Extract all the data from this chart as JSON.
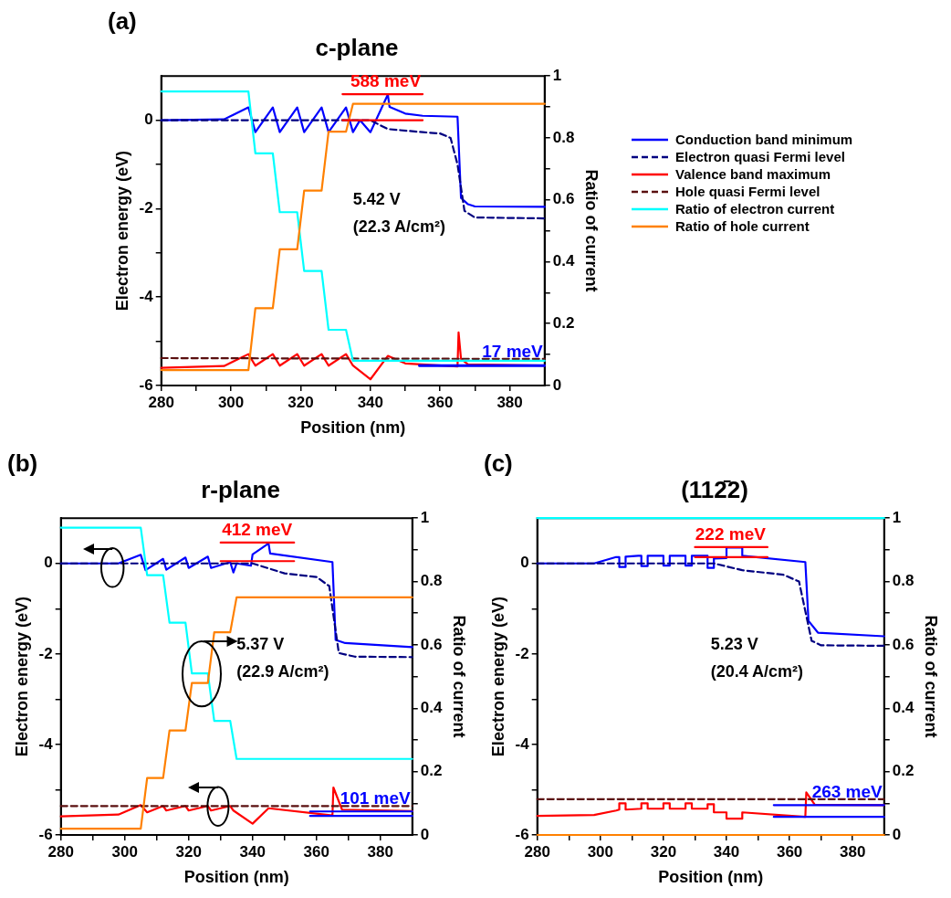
{
  "chart_data": [
    {
      "type": "line",
      "title": "c-plane",
      "xlabel": "Position (nm)",
      "ylabel": "Electron energy (eV)",
      "y2label": "Ratio of current",
      "annotations": [
        "(a)",
        "5.42 V",
        "(22.3 A/cm²)"
      ],
      "xlim": [
        280,
        390
      ],
      "xticks": [
        280,
        {
          "value": 290,
          "label": null
        },
        300,
        {
          "value": 310,
          "label": null
        },
        320,
        {
          "value": 330,
          "label": null
        },
        340,
        {
          "value": 350,
          "label": null
        },
        360,
        {
          "value": 370,
          "label": null
        },
        380
      ],
      "ylim": [
        -6,
        1
      ],
      "yticks": [
        -6,
        {
          "value": -5,
          "label": null
        },
        -4,
        {
          "value": -3,
          "label": null
        },
        -2,
        {
          "value": -1,
          "label": null
        },
        0
      ],
      "y2lim": [
        0,
        1
      ],
      "y2ticks": [
        0,
        {
          "value": 0.1,
          "label": null
        },
        0.2,
        {
          "value": 0.3,
          "label": null
        },
        0.4,
        {
          "value": 0.5,
          "label": null
        },
        0.6,
        {
          "value": 0.7,
          "label": null
        },
        0.8,
        {
          "value": 0.9,
          "label": null
        },
        1
      ],
      "grid": false,
      "legend": "right",
      "marker": "none",
      "series": [
        {
          "name": "Conduction band minimum",
          "color": "#0000ff",
          "x": [
            280,
            298,
            305,
            307,
            312,
            314,
            319,
            321,
            326,
            328,
            333,
            335,
            337,
            340,
            345,
            345.5,
            350,
            355,
            365,
            366,
            368,
            370,
            390
          ],
          "values": [
            0,
            0.02,
            0.29,
            -0.27,
            0.29,
            -0.27,
            0.29,
            -0.27,
            0.29,
            -0.27,
            0.29,
            -0.27,
            0,
            -0.27,
            0.58,
            0.3,
            0.15,
            0.1,
            0.08,
            -1.76,
            -1.9,
            -1.95,
            -1.96
          ]
        },
        {
          "name": "Electron quasi Fermi level",
          "color": "#000080",
          "line_style": "dashed",
          "x": [
            280,
            340,
            345,
            355,
            360,
            363,
            365,
            367,
            370,
            390
          ],
          "values": [
            0,
            0,
            -0.2,
            -0.27,
            -0.3,
            -0.4,
            -1.0,
            -2.05,
            -2.2,
            -2.22
          ]
        },
        {
          "name": "Valence band maximum",
          "color": "#ff0000",
          "x": [
            280,
            298,
            305,
            307,
            312,
            314,
            319,
            321,
            326,
            328,
            333,
            335,
            340,
            345,
            350,
            365,
            365.3,
            366,
            368,
            390
          ],
          "values": [
            -5.6,
            -5.56,
            -5.29,
            -5.55,
            -5.29,
            -5.55,
            -5.29,
            -5.55,
            -5.29,
            -5.55,
            -5.29,
            -5.55,
            -5.86,
            -5.33,
            -5.5,
            -5.57,
            -4.8,
            -5.4,
            -5.52,
            -5.55
          ]
        },
        {
          "name": "Hole quasi Fermi level",
          "color": "#5a0f0f",
          "line_style": "dashed",
          "x": [
            280,
            390
          ],
          "values": [
            -5.38,
            -5.4
          ]
        },
        {
          "name": "Ratio of electron current",
          "color": "#00ffff",
          "axis": "y2",
          "x": [
            280,
            305,
            307,
            312,
            314,
            319,
            321,
            326,
            328,
            333,
            335,
            390
          ],
          "values": [
            0.95,
            0.95,
            0.75,
            0.75,
            0.56,
            0.56,
            0.37,
            0.37,
            0.18,
            0.18,
            0.08,
            0.08
          ]
        },
        {
          "name": "Ratio of hole current",
          "color": "#ff8000",
          "axis": "y2",
          "x": [
            280,
            305,
            307,
            312,
            314,
            319,
            321,
            326,
            328,
            333,
            335,
            390
          ],
          "values": [
            0.05,
            0.05,
            0.25,
            0.25,
            0.44,
            0.44,
            0.63,
            0.63,
            0.82,
            0.82,
            0.91,
            0.91
          ]
        },
        {
          "name": "588 meV",
          "color": "#ff0000",
          "x": [
            332,
            355
          ],
          "values": [
            0.59,
            0.59
          ]
        },
        {
          "color": "#ff0000",
          "x": [
            332,
            355
          ],
          "values": [
            0,
            0
          ]
        },
        {
          "name": "17 meV",
          "color": "#0000ff",
          "x": [
            354,
            390
          ],
          "values": [
            -5.54,
            -5.54
          ]
        },
        {
          "color": "#0000ff",
          "x": [
            354,
            390
          ],
          "values": [
            -5.56,
            -5.56
          ]
        }
      ]
    },
    {
      "type": "line",
      "title": "r-plane",
      "xlabel": "Position (nm)",
      "ylabel": "Electron energy (eV)",
      "y2label": "Ratio of current",
      "annotations": [
        "(b)",
        "5.37 V",
        "(22.9 A/cm²)"
      ],
      "xlim": [
        280,
        390
      ],
      "xticks": [
        280,
        {
          "value": 290,
          "label": null
        },
        300,
        {
          "value": 310,
          "label": null
        },
        320,
        {
          "value": 330,
          "label": null
        },
        340,
        {
          "value": 350,
          "label": null
        },
        360,
        {
          "value": 370,
          "label": null
        },
        380
      ],
      "ylim": [
        -6,
        1
      ],
      "yticks": [
        -6,
        {
          "value": -5,
          "label": null
        },
        -4,
        {
          "value": -3,
          "label": null
        },
        -2,
        {
          "value": -1,
          "label": null
        },
        0
      ],
      "y2lim": [
        0,
        1
      ],
      "y2ticks": [
        0,
        {
          "value": 0.1,
          "label": null
        },
        0.2,
        {
          "value": 0.3,
          "label": null
        },
        0.4,
        {
          "value": 0.5,
          "label": null
        },
        0.6,
        {
          "value": 0.7,
          "label": null
        },
        0.8,
        {
          "value": 0.9,
          "label": null
        },
        1
      ],
      "grid": false,
      "legend": false,
      "marker": "none",
      "series": [
        {
          "color": "#0000ff",
          "x": [
            280,
            298,
            305,
            306.5,
            312,
            313,
            319,
            320,
            326,
            327,
            333,
            334,
            335,
            339.5,
            340,
            345,
            345.5,
            365,
            366,
            369,
            390
          ],
          "values": [
            0,
            0,
            0.19,
            -0.15,
            0.1,
            -0.14,
            0.13,
            -0.1,
            0.15,
            -0.1,
            0.03,
            -0.2,
            0,
            -0.05,
            0.2,
            0.44,
            0.22,
            0.03,
            -1.69,
            -1.76,
            -1.85
          ]
        },
        {
          "color": "#000080",
          "line_style": "dashed",
          "x": [
            280,
            340,
            350,
            360,
            364,
            367,
            372,
            390
          ],
          "values": [
            0,
            0,
            -0.22,
            -0.3,
            -0.5,
            -1.98,
            -2.06,
            -2.07
          ]
        },
        {
          "color": "#ff0000",
          "x": [
            280,
            298,
            305,
            307,
            312,
            313,
            319,
            320,
            326,
            327,
            333,
            334,
            340,
            345,
            365,
            365.3,
            368,
            390
          ],
          "values": [
            -5.59,
            -5.55,
            -5.34,
            -5.5,
            -5.36,
            -5.46,
            -5.36,
            -5.46,
            -5.36,
            -5.46,
            -5.36,
            -5.46,
            -5.75,
            -5.41,
            -5.57,
            -4.95,
            -5.44,
            -5.47
          ]
        },
        {
          "color": "#5a0f0f",
          "line_style": "dashed",
          "x": [
            280,
            390
          ],
          "values": [
            -5.36,
            -5.36
          ]
        },
        {
          "color": "#00ffff",
          "axis": "y2",
          "x": [
            280,
            305,
            307,
            312,
            314,
            319,
            321,
            326,
            328,
            333,
            335,
            390
          ],
          "values": [
            0.97,
            0.97,
            0.82,
            0.82,
            0.67,
            0.67,
            0.51,
            0.51,
            0.36,
            0.36,
            0.24,
            0.24
          ]
        },
        {
          "color": "#ff8000",
          "axis": "y2",
          "x": [
            280,
            305,
            307,
            312,
            314,
            319,
            321,
            326,
            328,
            333,
            335,
            390
          ],
          "values": [
            0.02,
            0.02,
            0.18,
            0.18,
            0.33,
            0.33,
            0.48,
            0.48,
            0.64,
            0.64,
            0.75,
            0.75
          ]
        },
        {
          "name": "412 meV",
          "color": "#ff0000",
          "x": [
            330,
            353
          ],
          "values": [
            0.46,
            0.46
          ]
        },
        {
          "color": "#ff0000",
          "x": [
            330,
            353
          ],
          "values": [
            0.05,
            0.05
          ]
        },
        {
          "name": "101 meV",
          "color": "#0000ff",
          "x": [
            358,
            390
          ],
          "values": [
            -5.48,
            -5.48
          ]
        },
        {
          "color": "#0000ff",
          "x": [
            358,
            390
          ],
          "values": [
            -5.58,
            -5.58
          ]
        }
      ]
    },
    {
      "type": "line",
      "title": "(112̄2)",
      "xlabel": "Position (nm)",
      "ylabel": "Electron energy (eV)",
      "y2label": "Ratio of current",
      "annotations": [
        "(c)",
        "5.23 V",
        "(20.4 A/cm²)"
      ],
      "xlim": [
        280,
        390
      ],
      "xticks": [
        280,
        {
          "value": 290,
          "label": null
        },
        300,
        {
          "value": 310,
          "label": null
        },
        320,
        {
          "value": 330,
          "label": null
        },
        340,
        {
          "value": 350,
          "label": null
        },
        360,
        {
          "value": 370,
          "label": null
        },
        380
      ],
      "ylim": [
        -6,
        1
      ],
      "yticks": [
        -6,
        {
          "value": -5,
          "label": null
        },
        -4,
        {
          "value": -3,
          "label": null
        },
        -2,
        {
          "value": -1,
          "label": null
        },
        0
      ],
      "y2lim": [
        0,
        1
      ],
      "y2ticks": [
        0,
        {
          "value": 0.1,
          "label": null
        },
        0.2,
        {
          "value": 0.3,
          "label": null
        },
        0.4,
        {
          "value": 0.5,
          "label": null
        },
        0.6,
        {
          "value": 0.7,
          "label": null
        },
        0.8,
        {
          "value": 0.9,
          "label": null
        },
        1
      ],
      "grid": false,
      "legend": false,
      "marker": "none",
      "series": [
        {
          "color": "#0000ff",
          "x": [
            280,
            298,
            305,
            306,
            306,
            308,
            308,
            312,
            313,
            313,
            315,
            315,
            319,
            320,
            320,
            322,
            322,
            326,
            327,
            327,
            329,
            329,
            333,
            334,
            334,
            336,
            336,
            340,
            340,
            345,
            345,
            365,
            366,
            369,
            390
          ],
          "values": [
            0,
            0,
            0.14,
            0.14,
            -0.08,
            -0.08,
            0.15,
            0.17,
            0.17,
            -0.06,
            -0.06,
            0.17,
            0.17,
            0.17,
            -0.05,
            -0.05,
            0.17,
            0.17,
            0.17,
            -0.05,
            -0.05,
            0.17,
            0.17,
            0.17,
            -0.1,
            -0.1,
            0.11,
            0.12,
            0.35,
            0.35,
            0.17,
            0.03,
            -1.27,
            -1.53,
            -1.61
          ]
        },
        {
          "color": "#000080",
          "line_style": "dashed",
          "x": [
            280,
            336,
            345,
            358,
            363,
            367,
            370,
            390
          ],
          "values": [
            0,
            0,
            -0.15,
            -0.25,
            -0.4,
            -1.71,
            -1.81,
            -1.82
          ]
        },
        {
          "color": "#ff0000",
          "x": [
            280,
            298,
            305,
            306,
            306,
            308,
            308,
            313,
            313,
            315,
            315,
            320,
            320,
            322,
            322,
            327,
            327,
            329,
            329,
            334,
            334,
            336,
            336,
            340,
            340,
            345,
            345,
            365,
            365.3,
            368,
            390
          ],
          "values": [
            -5.58,
            -5.56,
            -5.46,
            -5.44,
            -5.3,
            -5.3,
            -5.44,
            -5.42,
            -5.3,
            -5.3,
            -5.42,
            -5.42,
            -5.3,
            -5.3,
            -5.42,
            -5.42,
            -5.3,
            -5.3,
            -5.42,
            -5.42,
            -5.32,
            -5.32,
            -5.5,
            -5.5,
            -5.64,
            -5.64,
            -5.5,
            -5.6,
            -5.06,
            -5.33,
            -5.34
          ]
        },
        {
          "color": "#5a0f0f",
          "line_style": "dashed",
          "x": [
            280,
            390
          ],
          "values": [
            -5.21,
            -5.21
          ]
        },
        {
          "color": "#00ffff",
          "axis": "y2",
          "x": [
            280,
            390
          ],
          "values": [
            1,
            1
          ]
        },
        {
          "color": "#ff8000",
          "axis": "y2",
          "x": [
            280,
            390
          ],
          "values": [
            0,
            0
          ]
        },
        {
          "name": "222 meV",
          "color": "#ff0000",
          "x": [
            330,
            353
          ],
          "values": [
            0.36,
            0.36
          ]
        },
        {
          "color": "#ff0000",
          "x": [
            330,
            353
          ],
          "values": [
            0.14,
            0.14
          ]
        },
        {
          "name": "263 meV",
          "color": "#0000ff",
          "x": [
            355,
            390
          ],
          "values": [
            -5.34,
            -5.34
          ]
        },
        {
          "color": "#0000ff",
          "x": [
            355,
            390
          ],
          "values": [
            -5.6,
            -5.6
          ]
        }
      ]
    }
  ]
}
